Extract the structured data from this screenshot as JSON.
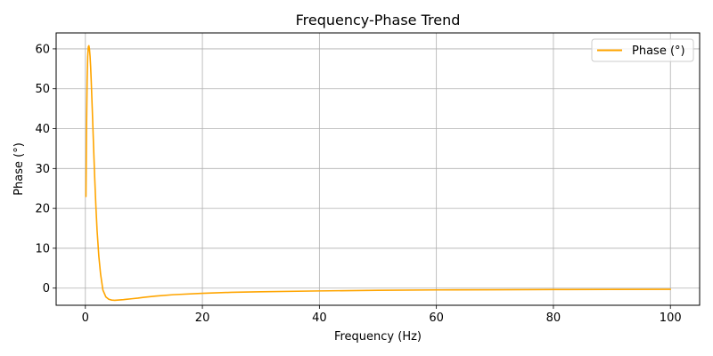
{
  "chart_data": {
    "type": "line",
    "title": "Frequency-Phase Trend",
    "xlabel": "Frequency (Hz)",
    "ylabel": "Phase (°)",
    "xlim": [
      -4.995,
      104.995
    ],
    "ylim": [
      -4.3,
      64.0
    ],
    "xticks": [
      0,
      20,
      40,
      60,
      80,
      100
    ],
    "yticks": [
      0,
      10,
      20,
      30,
      40,
      50,
      60
    ],
    "grid": true,
    "legend_position": "top-right",
    "series": [
      {
        "name": "Phase (°)",
        "color": "#FFA500",
        "x": [
          0.1,
          0.2,
          0.3,
          0.4,
          0.5,
          0.6,
          0.7,
          0.8,
          0.9,
          1.0,
          1.2,
          1.4,
          1.6,
          1.8,
          2.0,
          2.3,
          2.6,
          3.0,
          3.5,
          4.0,
          4.5,
          5.0,
          5.5,
          6.0,
          6.5,
          7.0,
          8.0,
          9.0,
          10.0,
          12.0,
          15.0,
          20.0,
          25.0,
          30.0,
          40.0,
          50.0,
          60.0,
          70.0,
          80.0,
          90.0,
          100.0
        ],
        "y": [
          23.0,
          40.0,
          52.0,
          58.0,
          60.5,
          60.8,
          60.0,
          58.2,
          55.5,
          52.0,
          44.0,
          35.5,
          27.5,
          20.5,
          14.5,
          8.0,
          3.5,
          -0.5,
          -2.2,
          -2.8,
          -3.0,
          -3.05,
          -3.0,
          -2.95,
          -2.9,
          -2.8,
          -2.65,
          -2.5,
          -2.3,
          -2.0,
          -1.65,
          -1.3,
          -1.05,
          -0.9,
          -0.7,
          -0.55,
          -0.45,
          -0.4,
          -0.35,
          -0.32,
          -0.3
        ]
      }
    ]
  }
}
